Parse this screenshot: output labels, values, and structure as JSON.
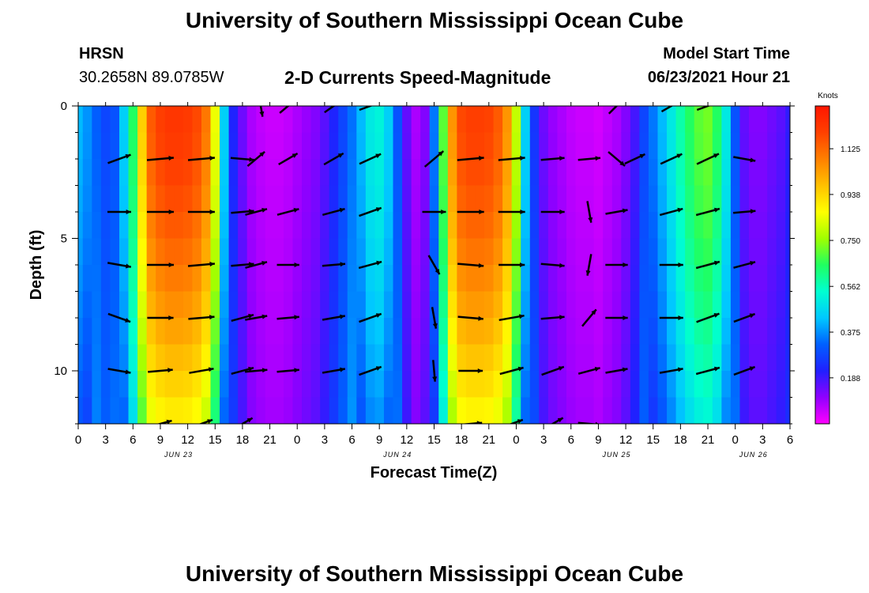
{
  "header": {
    "title": "University of Southern Mississippi Ocean Cube",
    "station": "HRSN",
    "coords": "30.2658N  89.0785W",
    "subtitle": "2-D Currents Speed-Magnitude",
    "model_label": "Model Start Time",
    "model_time": "06/23/2021 Hour 21"
  },
  "footer": {
    "title": "University of Southern Mississippi Ocean Cube"
  },
  "colors": {
    "scale": [
      "#ff00ff",
      "#9000ff",
      "#2020ff",
      "#0060ff",
      "#00c8ff",
      "#00ffd0",
      "#20ff60",
      "#a0ff00",
      "#ffff00",
      "#ffc000",
      "#ff8000",
      "#ff4000",
      "#ff1500"
    ],
    "arrow": "#000000"
  },
  "chart_data": {
    "type": "heatmap",
    "title": "2-D Currents Speed-Magnitude",
    "xlabel": "Forecast Time(Z)",
    "ylabel": "Depth (ft)",
    "x_range_hours": [
      0,
      78
    ],
    "ylim": [
      0,
      12
    ],
    "y_ticks": [
      0,
      5,
      10
    ],
    "x_tick_labels": [
      "0",
      "3",
      "6",
      "9",
      "12",
      "15",
      "18",
      "21",
      "0",
      "3",
      "6",
      "9",
      "12",
      "15",
      "18",
      "21",
      "0",
      "3",
      "6",
      "9",
      "12",
      "15",
      "18",
      "21",
      "0",
      "3",
      "6"
    ],
    "date_labels": [
      {
        "text": "JUN 23",
        "hour": 11
      },
      {
        "text": "JUN 24",
        "hour": 35
      },
      {
        "text": "JUN 25",
        "hour": 59
      },
      {
        "text": "JUN 26",
        "hour": 74
      }
    ],
    "colorbar": {
      "unit": "Knots",
      "min": 0,
      "max": 1.3,
      "tick_labels": [
        "1.125",
        "0.938",
        "0.750",
        "0.562",
        "0.375",
        "0.188"
      ],
      "tick_values": [
        1.125,
        0.938,
        0.75,
        0.562,
        0.375,
        0.188
      ]
    },
    "depth_levels_ft": [
      0,
      2,
      4,
      6,
      8,
      10,
      12
    ],
    "speed_profile": {
      "description": "surface speed (knots) vs forecast hour",
      "hours": [
        0,
        1,
        2,
        3,
        4,
        5,
        6,
        7,
        8,
        9,
        10,
        11,
        12,
        13,
        14,
        15,
        16,
        17,
        18,
        19,
        20,
        21,
        22,
        23,
        24,
        25,
        26,
        27,
        28,
        29,
        30,
        31,
        32,
        33,
        34,
        35,
        36,
        37,
        38,
        39,
        40,
        41,
        42,
        43,
        44,
        45,
        46,
        47,
        48,
        49,
        50,
        51,
        52,
        53,
        54,
        55,
        56,
        57,
        58,
        59,
        60,
        61,
        62,
        63,
        64,
        65,
        66,
        67,
        68,
        69,
        70,
        71,
        72,
        73,
        74,
        75,
        76,
        77,
        78
      ],
      "values": [
        0.42,
        0.38,
        0.32,
        0.28,
        0.3,
        0.45,
        0.65,
        0.95,
        1.15,
        1.2,
        1.22,
        1.22,
        1.21,
        1.18,
        1.1,
        0.85,
        0.45,
        0.22,
        0.14,
        0.08,
        0.06,
        0.05,
        0.05,
        0.06,
        0.08,
        0.1,
        0.12,
        0.16,
        0.22,
        0.28,
        0.34,
        0.42,
        0.5,
        0.52,
        0.45,
        0.3,
        0.15,
        0.08,
        0.12,
        0.35,
        0.7,
        1.05,
        1.18,
        1.2,
        1.2,
        1.19,
        1.15,
        1.05,
        0.8,
        0.45,
        0.25,
        0.14,
        0.1,
        0.08,
        0.06,
        0.05,
        0.05,
        0.04,
        0.06,
        0.08,
        0.12,
        0.18,
        0.28,
        0.35,
        0.42,
        0.5,
        0.58,
        0.65,
        0.7,
        0.72,
        0.65,
        0.5,
        0.3,
        0.15,
        0.12,
        0.12,
        0.14,
        0.16,
        0.2
      ]
    },
    "vectors": {
      "description": "current direction arrows; [hour, depth_ft, angle_deg (0=east, positive=counterclockwise), speed_knots]",
      "points": [
        [
          4.5,
          2,
          20,
          0.6
        ],
        [
          9,
          2,
          5,
          1.0
        ],
        [
          13.5,
          2,
          5,
          1.0
        ],
        [
          18,
          2,
          -5,
          0.5
        ],
        [
          19.5,
          2,
          40,
          0.3
        ],
        [
          23,
          2,
          30,
          0.2
        ],
        [
          28,
          2,
          30,
          0.3
        ],
        [
          32,
          2,
          25,
          0.5
        ],
        [
          39,
          2,
          40,
          0.6
        ],
        [
          43,
          2,
          5,
          1.0
        ],
        [
          47.5,
          2,
          5,
          1.0
        ],
        [
          52,
          2,
          5,
          0.5
        ],
        [
          56,
          2,
          5,
          0.3
        ],
        [
          59,
          2,
          -40,
          0.2
        ],
        [
          61,
          2,
          25,
          0.3
        ],
        [
          65,
          2,
          25,
          0.5
        ],
        [
          69,
          2,
          25,
          0.6
        ],
        [
          73,
          2,
          -10,
          0.3
        ],
        [
          4.5,
          4,
          0,
          0.5
        ],
        [
          9,
          4,
          0,
          1.1
        ],
        [
          13.5,
          4,
          0,
          1.1
        ],
        [
          18,
          4,
          5,
          0.4
        ],
        [
          19.5,
          4,
          15,
          0.3
        ],
        [
          23,
          4,
          15,
          0.3
        ],
        [
          28,
          4,
          15,
          0.4
        ],
        [
          32,
          4,
          20,
          0.5
        ],
        [
          39,
          4,
          0,
          0.5
        ],
        [
          43,
          4,
          0,
          1.1
        ],
        [
          47.5,
          4,
          0,
          1.1
        ],
        [
          52,
          4,
          0,
          0.5
        ],
        [
          56,
          4,
          -80,
          0.2
        ],
        [
          59,
          4,
          10,
          0.3
        ],
        [
          65,
          4,
          15,
          0.5
        ],
        [
          69,
          4,
          15,
          0.6
        ],
        [
          73,
          4,
          5,
          0.3
        ],
        [
          4.5,
          6,
          -10,
          0.5
        ],
        [
          9,
          6,
          0,
          1.0
        ],
        [
          13.5,
          6,
          5,
          1.0
        ],
        [
          18,
          6,
          5,
          0.4
        ],
        [
          19.5,
          6,
          15,
          0.3
        ],
        [
          23,
          6,
          0,
          0.3
        ],
        [
          28,
          6,
          5,
          0.4
        ],
        [
          32,
          6,
          15,
          0.5
        ],
        [
          39,
          6,
          -60,
          0.2
        ],
        [
          43,
          6,
          -5,
          0.9
        ],
        [
          47.5,
          6,
          0,
          0.9
        ],
        [
          52,
          6,
          -5,
          0.5
        ],
        [
          56,
          6,
          -100,
          0.2
        ],
        [
          59,
          6,
          0,
          0.3
        ],
        [
          65,
          6,
          0,
          0.5
        ],
        [
          69,
          6,
          15,
          0.6
        ],
        [
          73,
          6,
          15,
          0.3
        ],
        [
          4.5,
          8,
          -20,
          0.5
        ],
        [
          9,
          8,
          0,
          0.9
        ],
        [
          13.5,
          8,
          5,
          0.9
        ],
        [
          18,
          8,
          15,
          0.4
        ],
        [
          19.5,
          8,
          10,
          0.3
        ],
        [
          23,
          8,
          5,
          0.3
        ],
        [
          28,
          8,
          10,
          0.4
        ],
        [
          32,
          8,
          20,
          0.5
        ],
        [
          39,
          8,
          -80,
          0.2
        ],
        [
          43,
          8,
          -5,
          0.8
        ],
        [
          47.5,
          8,
          10,
          0.8
        ],
        [
          52,
          8,
          5,
          0.5
        ],
        [
          56,
          8,
          50,
          0.2
        ],
        [
          59,
          8,
          0,
          0.3
        ],
        [
          65,
          8,
          0,
          0.5
        ],
        [
          69,
          8,
          20,
          0.6
        ],
        [
          73,
          8,
          20,
          0.3
        ],
        [
          4.5,
          10,
          -10,
          0.4
        ],
        [
          9,
          10,
          5,
          0.7
        ],
        [
          13.5,
          10,
          10,
          0.7
        ],
        [
          18,
          10,
          15,
          0.4
        ],
        [
          19.5,
          10,
          5,
          0.3
        ],
        [
          23,
          10,
          5,
          0.3
        ],
        [
          28,
          10,
          10,
          0.4
        ],
        [
          32,
          10,
          20,
          0.5
        ],
        [
          39,
          10,
          -85,
          0.2
        ],
        [
          43,
          10,
          0,
          0.6
        ],
        [
          47.5,
          10,
          15,
          0.6
        ],
        [
          52,
          10,
          20,
          0.5
        ],
        [
          56,
          10,
          15,
          0.3
        ],
        [
          59,
          10,
          10,
          0.3
        ],
        [
          65,
          10,
          10,
          0.5
        ],
        [
          69,
          10,
          15,
          0.6
        ],
        [
          73,
          10,
          20,
          0.3
        ],
        [
          9,
          12,
          15,
          0.5
        ],
        [
          13.5,
          12,
          20,
          0.5
        ],
        [
          18,
          12,
          30,
          0.4
        ],
        [
          43,
          12,
          5,
          0.4
        ],
        [
          47.5,
          12,
          20,
          0.5
        ],
        [
          52,
          12,
          30,
          0.5
        ],
        [
          56,
          12,
          -5,
          0.3
        ],
        [
          20,
          0,
          -80,
          0.2
        ],
        [
          23,
          0,
          40,
          0.2
        ],
        [
          28,
          0,
          35,
          0.3
        ],
        [
          32,
          0,
          20,
          0.4
        ],
        [
          59,
          0,
          45,
          0.2
        ],
        [
          65,
          0,
          30,
          0.3
        ],
        [
          69,
          0,
          20,
          0.4
        ]
      ]
    }
  }
}
